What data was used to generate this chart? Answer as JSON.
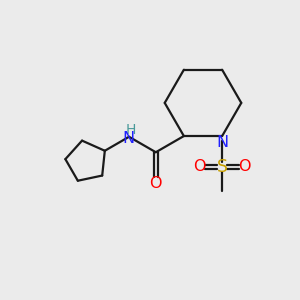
{
  "background_color": "#ebebeb",
  "bond_color": "#1a1a1a",
  "N_color": "#2020ff",
  "O_color": "#ff0000",
  "S_color": "#c8a000",
  "NH_color": "#2020ff",
  "H_color": "#4a9a9a",
  "line_width": 1.6,
  "font_size": 11.5,
  "fig_width": 3.0,
  "fig_height": 3.0,
  "dpi": 100,
  "xlim": [
    0,
    10
  ],
  "ylim": [
    0,
    10
  ]
}
